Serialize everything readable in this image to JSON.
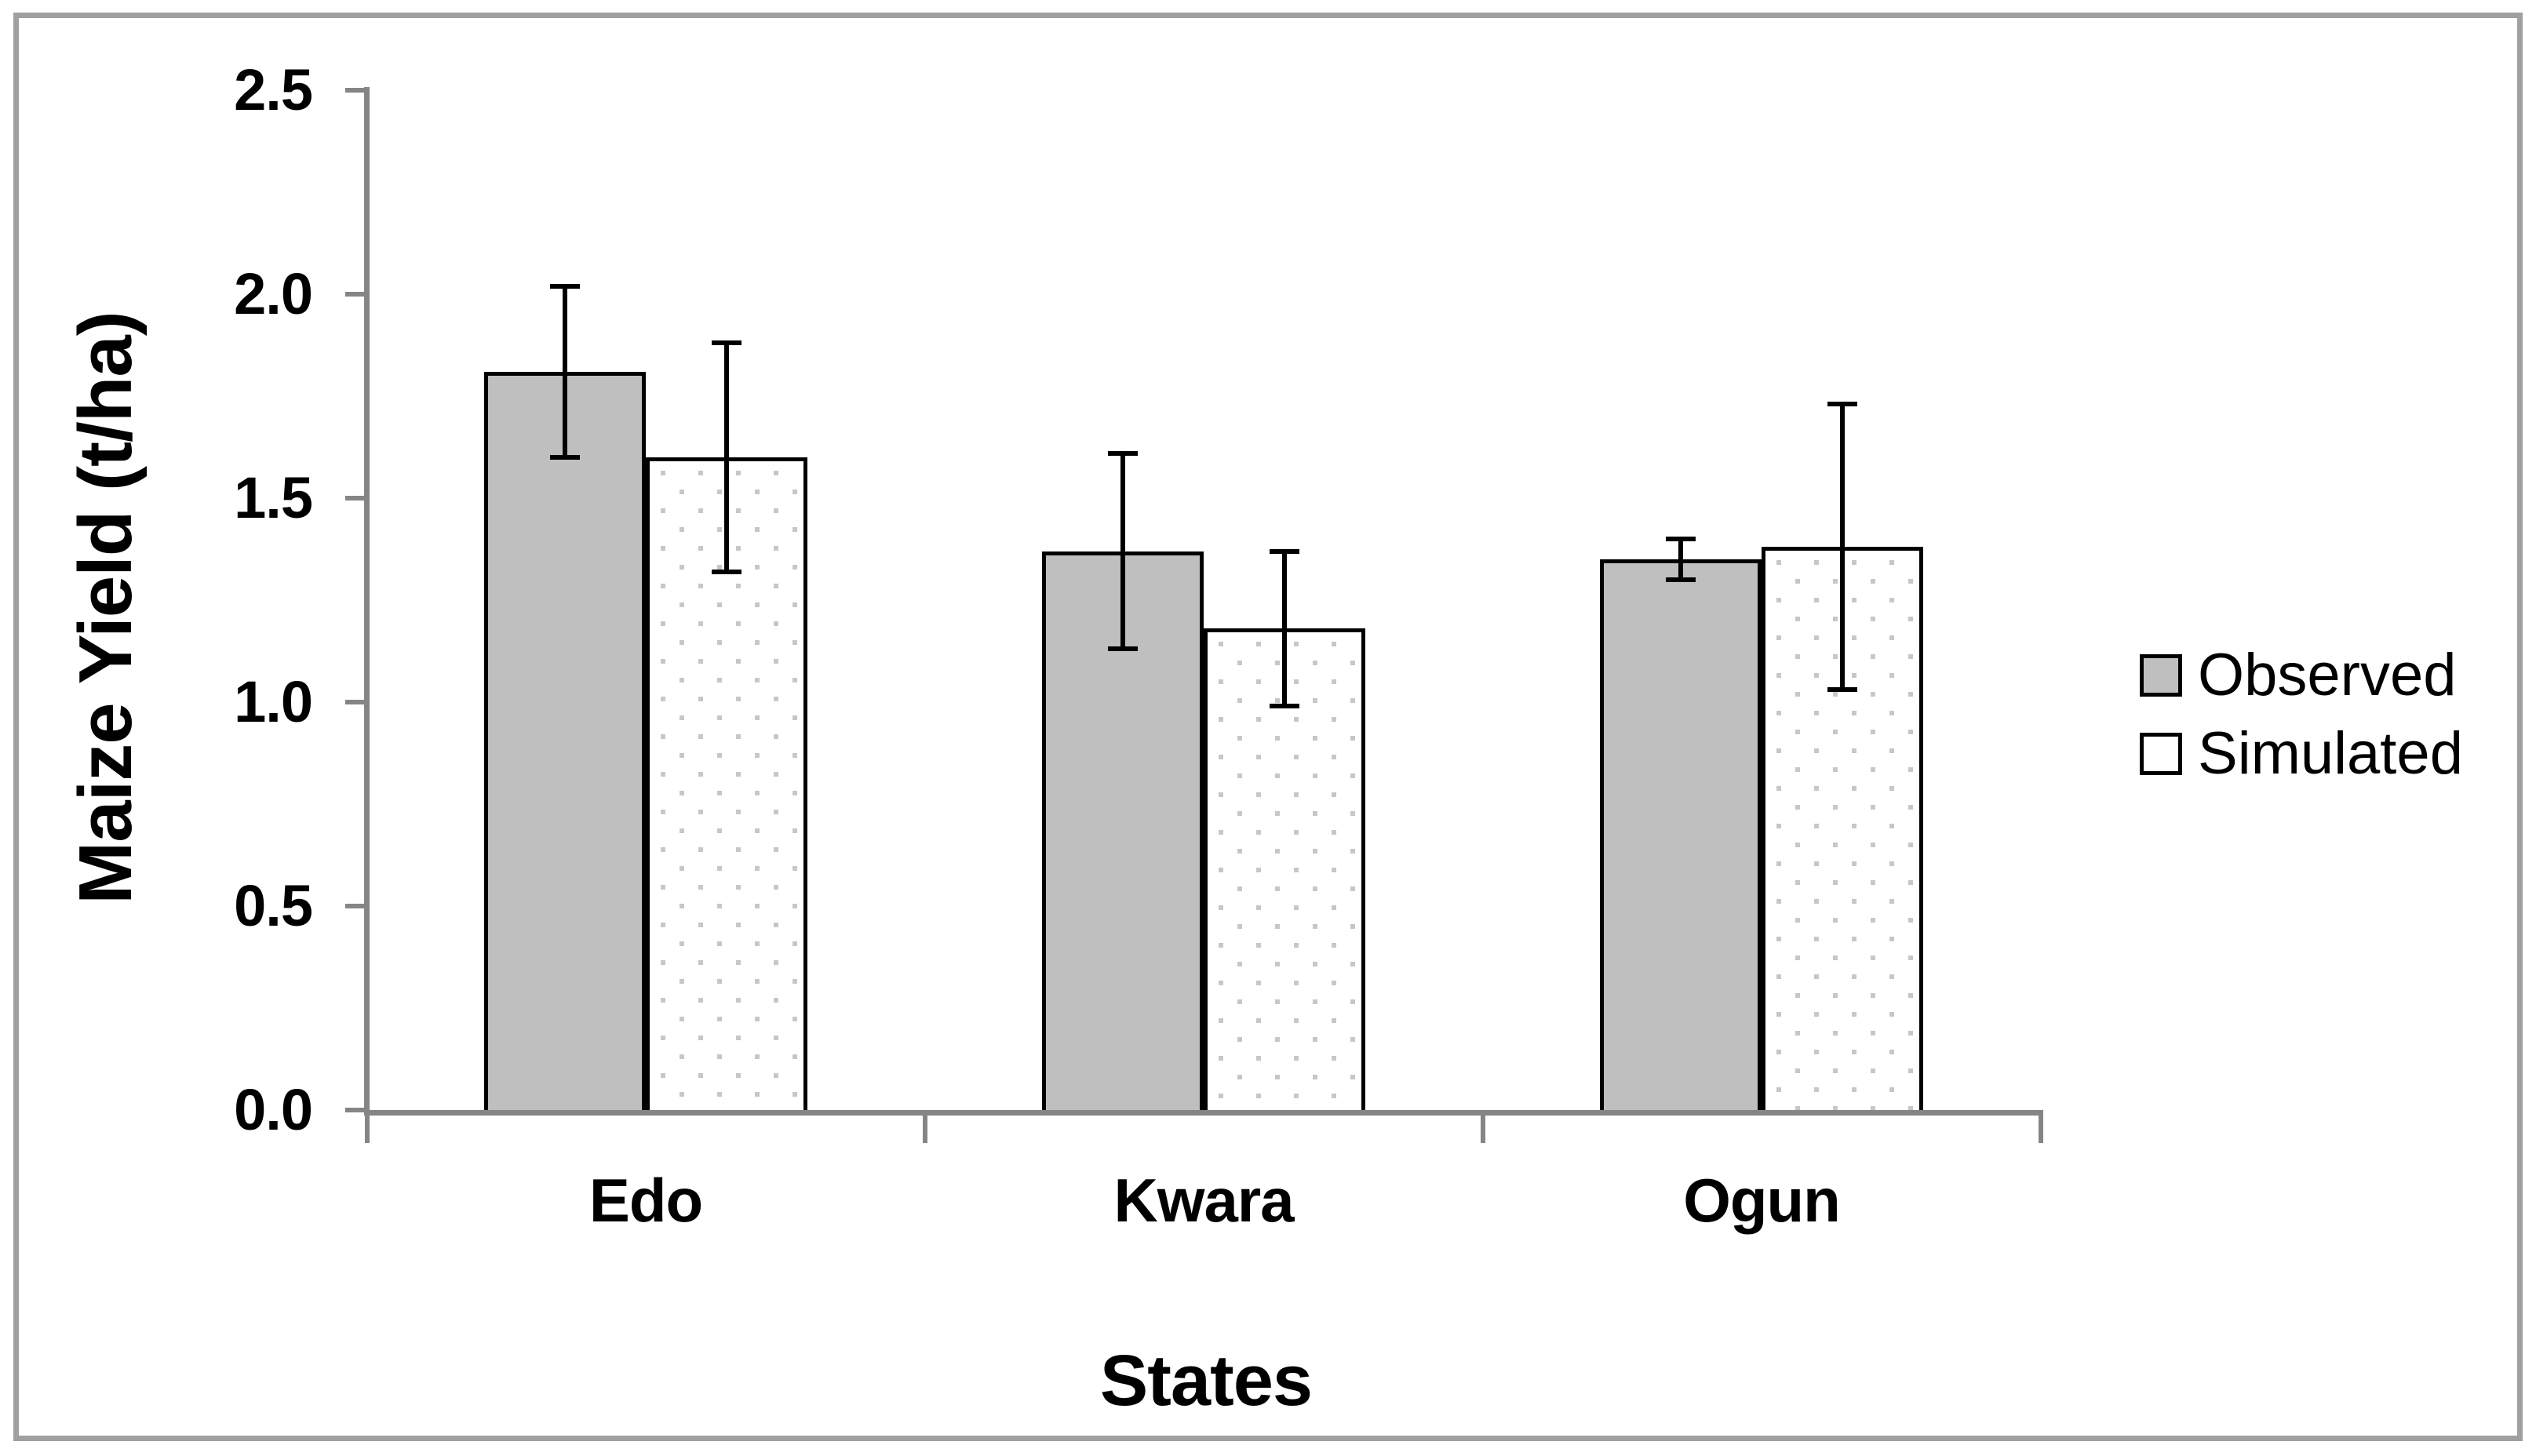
{
  "colors": {
    "bar_gray": "#bfbfbf",
    "dot_gray": "#c7c7c7",
    "axis_gray": "#858585",
    "frame_gray": "#a0a0a0",
    "black": "#000000"
  },
  "legend": {
    "observed_label": "Observed",
    "simulated_label": "Simulated"
  },
  "chart_data": {
    "type": "bar",
    "title": "",
    "xlabel": "States",
    "ylabel": "Maize Yield (t/ha)",
    "categories": [
      "Edo",
      "Kwara",
      "Ogun"
    ],
    "series": [
      {
        "name": "Observed",
        "values": [
          1.81,
          1.37,
          1.35
        ],
        "errors": [
          0.21,
          0.24,
          0.05
        ],
        "pattern": "solid",
        "fill": "#bfbfbf"
      },
      {
        "name": "Simulated",
        "values": [
          1.6,
          1.18,
          1.38
        ],
        "errors": [
          0.28,
          0.19,
          0.35
        ],
        "pattern": "dots",
        "fill": "#ffffff"
      }
    ],
    "ylim": [
      0.0,
      2.5
    ],
    "y_ticks": [
      0.0,
      0.5,
      1.0,
      1.5,
      2.0,
      2.5
    ],
    "y_tick_labels": [
      "0.0",
      "0.5",
      "1.0",
      "1.5",
      "2.0",
      "2.5"
    ],
    "grid": false,
    "error_bars": true,
    "legend_position": "right"
  }
}
